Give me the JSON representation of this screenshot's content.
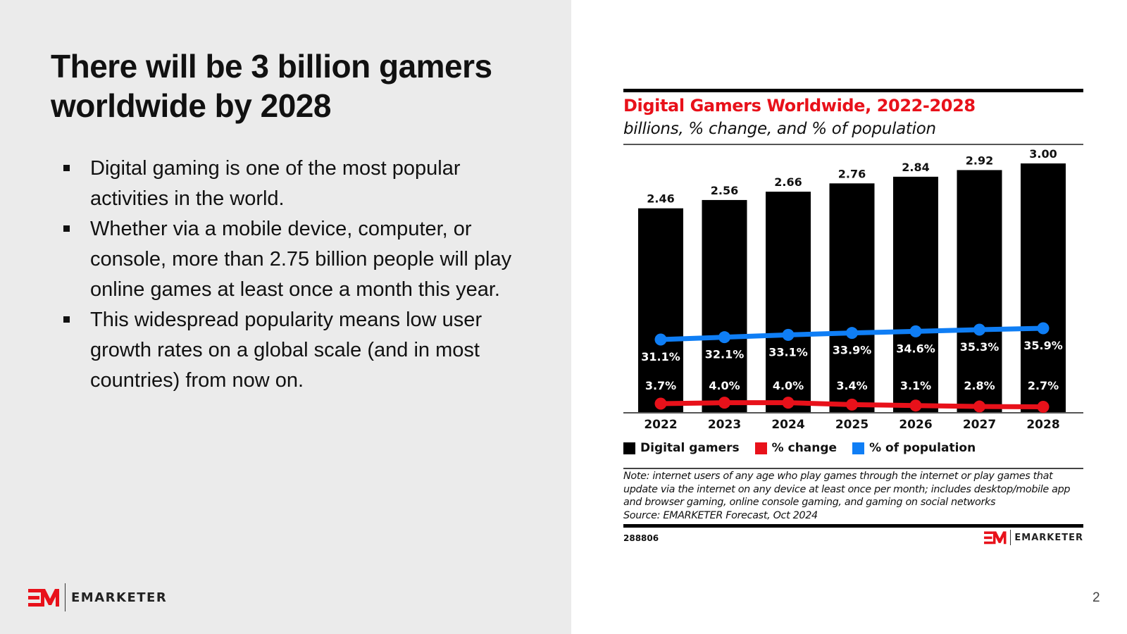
{
  "slide": {
    "title": "There will be 3 billion gamers worldwide by 2028",
    "bullets": [
      "Digital gaming is one of the most popular activities in the world.",
      "Whether via a mobile device, computer, or console, more than 2.75 billion people will play online games at least once a month this year.",
      "This widespread popularity means low user growth rates on a global scale (and in most countries) from now on."
    ],
    "logo_text": "EMARKETER",
    "page_number": "2"
  },
  "colors": {
    "brand_red": "#e8111a",
    "blue": "#0f7ef5",
    "black": "#000000"
  },
  "chart_data": {
    "type": "bar",
    "title": "Digital Gamers Worldwide, 2022-2028",
    "subtitle": "billions, % change, and % of population",
    "categories": [
      "2022",
      "2023",
      "2024",
      "2025",
      "2026",
      "2027",
      "2028"
    ],
    "series": [
      {
        "name": "Digital gamers",
        "type": "bar",
        "unit": "billions",
        "values": [
          2.46,
          2.56,
          2.66,
          2.76,
          2.84,
          2.92,
          3.0
        ],
        "labels": [
          "2.46",
          "2.56",
          "2.66",
          "2.76",
          "2.84",
          "2.92",
          "3.00"
        ],
        "color": "#000000"
      },
      {
        "name": "% change",
        "type": "line",
        "unit": "%",
        "values": [
          3.7,
          4.0,
          4.0,
          3.4,
          3.1,
          2.8,
          2.7
        ],
        "labels": [
          "3.7%",
          "4.0%",
          "4.0%",
          "3.4%",
          "3.1%",
          "2.8%",
          "2.7%"
        ],
        "color": "#e8111a"
      },
      {
        "name": "% of population",
        "type": "line",
        "unit": "%",
        "values": [
          31.1,
          32.1,
          33.1,
          33.9,
          34.6,
          35.3,
          35.9
        ],
        "labels": [
          "31.1%",
          "32.1%",
          "33.1%",
          "33.9%",
          "34.6%",
          "35.3%",
          "35.9%"
        ],
        "color": "#0f7ef5"
      }
    ],
    "ylim": [
      0,
      3.0
    ],
    "grid": false,
    "legend": "bottom-left",
    "legend_entries": [
      "Digital gamers",
      "% change",
      "% of population"
    ],
    "note_lines": [
      "Note: internet users of any age who play games through the internet or play games that",
      "update via the internet on any device at least once per month; includes desktop/mobile app",
      "and browser gaming, online console gaming, and gaming on social networks",
      "Source: EMARKETER Forecast, Oct 2024"
    ],
    "chart_id": "288806",
    "logo_text": "EMARKETER"
  }
}
